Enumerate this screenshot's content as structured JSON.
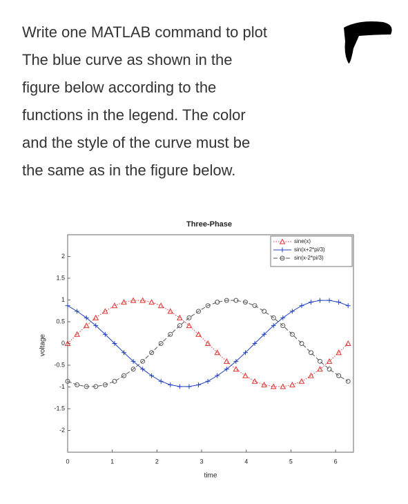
{
  "question": {
    "lines": [
      "Write one MATLAB command to plot",
      "The blue curve as shown in the",
      "figure below according to the",
      "functions in the legend. The color",
      "and the style of the curve must be",
      "the same as in the figure below."
    ]
  },
  "chart_data": {
    "type": "line",
    "title": "Three-Phase",
    "x_label": "time",
    "y_label": "voltage",
    "x": [
      0,
      0.21,
      0.42,
      0.63,
      0.84,
      1.05,
      1.26,
      1.47,
      1.68,
      1.88,
      2.09,
      2.3,
      2.51,
      2.72,
      2.93,
      3.14,
      3.35,
      3.56,
      3.77,
      3.98,
      4.19,
      4.4,
      4.61,
      4.82,
      5.03,
      5.24,
      5.45,
      5.65,
      5.86,
      6.07,
      6.28
    ],
    "series": [
      {
        "name": "sine(x)",
        "color": "#e03030",
        "marker": "triangle",
        "line_style": ":",
        "values": [
          0,
          0.21,
          0.41,
          0.59,
          0.74,
          0.87,
          0.95,
          0.99,
          0.99,
          0.95,
          0.87,
          0.74,
          0.59,
          0.41,
          0.21,
          0,
          -0.21,
          -0.41,
          -0.59,
          -0.74,
          -0.87,
          -0.95,
          -0.99,
          -0.99,
          -0.95,
          -0.87,
          -0.74,
          -0.59,
          -0.41,
          -0.21,
          0
        ]
      },
      {
        "name": "sin(x+2*pi/3)",
        "color": "#2040c0",
        "marker": "plus",
        "line_style": "-",
        "values": [
          0.87,
          0.74,
          0.59,
          0.41,
          0.21,
          0,
          -0.21,
          -0.41,
          -0.59,
          -0.74,
          -0.87,
          -0.95,
          -0.99,
          -0.99,
          -0.95,
          -0.87,
          -0.74,
          -0.59,
          -0.41,
          -0.21,
          0,
          0.21,
          0.41,
          0.59,
          0.74,
          0.87,
          0.95,
          0.99,
          0.99,
          0.95,
          0.87
        ]
      },
      {
        "name": "sin(x-2*pi/3)",
        "color": "#555555",
        "marker": "circle",
        "line_style": "--",
        "values": [
          -0.87,
          -0.95,
          -0.99,
          -0.99,
          -0.95,
          -0.87,
          -0.74,
          -0.59,
          -0.41,
          -0.21,
          0,
          0.21,
          0.41,
          0.59,
          0.74,
          0.87,
          0.95,
          0.99,
          0.99,
          0.95,
          0.87,
          0.74,
          0.59,
          0.41,
          0.21,
          0,
          -0.21,
          -0.41,
          -0.59,
          -0.74,
          -0.87
        ]
      }
    ],
    "xlim": [
      0,
      6.4
    ],
    "ylim": [
      -2.5,
      2.5
    ],
    "xticks": [
      0,
      1,
      2,
      3,
      4,
      5,
      6
    ],
    "yticks": [
      -2,
      -1.5,
      -1,
      -0.5,
      0,
      0.5,
      1,
      1.5,
      2
    ],
    "grid": false,
    "legend": "northeast"
  }
}
